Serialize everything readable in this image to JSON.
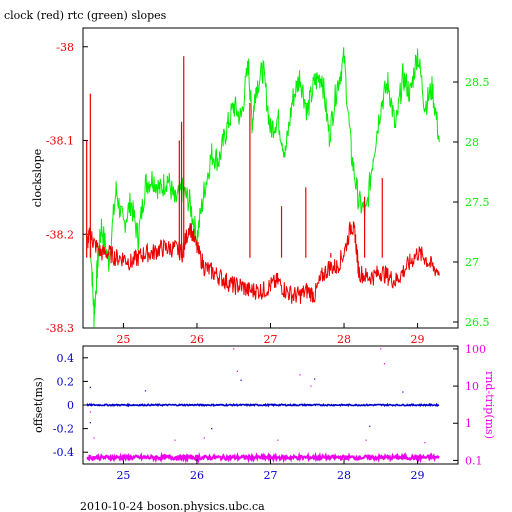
{
  "title": "clock (red) rtc (green) slopes",
  "footer": "2010-10-24  boson.physics.ubc.ca",
  "colors": {
    "red": "#ee0000",
    "green": "#00ee00",
    "blue": "#0000cc",
    "magenta": "#ee00ee",
    "axis": "#000000"
  },
  "chart_data": [
    {
      "type": "line",
      "title": "clock (red) rtc (green) slopes",
      "xlabel": "",
      "ylabel": "clockslope",
      "xlim": [
        24.45,
        29.55
      ],
      "ylim_left": [
        -38.3,
        -37.98
      ],
      "ylim_right": [
        26.45,
        28.95
      ],
      "x_ticks": [
        "25",
        "26",
        "27",
        "28",
        "29"
      ],
      "y_ticks_left": [
        "-38",
        "-38.1",
        "-38.2",
        "-38.3"
      ],
      "y_ticks_right": [
        "26.5",
        "27",
        "27.5",
        "28",
        "28.5"
      ],
      "series": [
        {
          "name": "clock",
          "color": "red",
          "axis": "left",
          "x": [
            24.5,
            24.55,
            24.6,
            24.7,
            24.8,
            24.9,
            25.0,
            25.1,
            25.2,
            25.3,
            25.4,
            25.5,
            25.6,
            25.7,
            25.8,
            25.9,
            26.0,
            26.1,
            26.2,
            26.3,
            26.4,
            26.5,
            26.6,
            26.7,
            26.8,
            26.9,
            27.0,
            27.1,
            27.2,
            27.3,
            27.4,
            27.5,
            27.6,
            27.7,
            27.8,
            27.9,
            28.0,
            28.1,
            28.15,
            28.2,
            28.3,
            28.4,
            28.5,
            28.6,
            28.7,
            28.8,
            28.9,
            29.0,
            29.1,
            29.2,
            29.3
          ],
          "values": [
            -38.21,
            -38.2,
            -38.21,
            -38.22,
            -38.22,
            -38.225,
            -38.225,
            -38.23,
            -38.225,
            -38.22,
            -38.22,
            -38.215,
            -38.215,
            -38.215,
            -38.22,
            -38.19,
            -38.215,
            -38.235,
            -38.24,
            -38.245,
            -38.25,
            -38.255,
            -38.255,
            -38.26,
            -38.26,
            -38.26,
            -38.255,
            -38.25,
            -38.26,
            -38.265,
            -38.265,
            -38.26,
            -38.265,
            -38.245,
            -38.235,
            -38.235,
            -38.22,
            -38.19,
            -38.2,
            -38.24,
            -38.245,
            -38.245,
            -38.24,
            -38.245,
            -38.25,
            -38.24,
            -38.23,
            -38.22,
            -38.225,
            -38.235,
            -38.24
          ],
          "spikes": [
            {
              "x": 24.55,
              "y": -38.05
            },
            {
              "x": 24.5,
              "y": -38.1
            },
            {
              "x": 25.82,
              "y": -38.01
            },
            {
              "x": 25.79,
              "y": -38.08
            },
            {
              "x": 25.76,
              "y": -38.1
            },
            {
              "x": 26.72,
              "y": -38.06
            },
            {
              "x": 27.15,
              "y": -38.17
            },
            {
              "x": 27.48,
              "y": -38.15
            },
            {
              "x": 27.82,
              "y": -38.22
            },
            {
              "x": 28.28,
              "y": -38.16
            },
            {
              "x": 28.52,
              "y": -38.14
            }
          ]
        },
        {
          "name": "rtc",
          "color": "green",
          "axis": "right",
          "x": [
            24.55,
            24.6,
            24.65,
            24.7,
            24.8,
            24.9,
            25.0,
            25.1,
            25.2,
            25.3,
            25.4,
            25.5,
            25.6,
            25.7,
            25.8,
            25.9,
            26.0,
            26.1,
            26.2,
            26.3,
            26.4,
            26.5,
            26.6,
            26.7,
            26.75,
            26.8,
            26.9,
            27.0,
            27.1,
            27.2,
            27.3,
            27.4,
            27.5,
            27.6,
            27.7,
            27.8,
            27.9,
            28.0,
            28.1,
            28.2,
            28.3,
            28.4,
            28.5,
            28.6,
            28.7,
            28.8,
            28.9,
            29.0,
            29.1,
            29.2,
            29.3
          ],
          "values": [
            27.2,
            26.55,
            27.0,
            27.3,
            27.0,
            27.6,
            27.3,
            27.5,
            27.2,
            27.65,
            27.7,
            27.6,
            27.7,
            27.5,
            27.6,
            27.5,
            27.2,
            27.6,
            27.9,
            27.85,
            28.1,
            28.3,
            28.2,
            28.65,
            28.15,
            28.45,
            28.6,
            28.1,
            28.2,
            27.9,
            28.35,
            28.55,
            28.25,
            28.5,
            28.55,
            28.05,
            28.45,
            28.7,
            27.9,
            27.5,
            27.4,
            27.9,
            28.3,
            28.5,
            28.1,
            28.55,
            28.4,
            28.75,
            28.3,
            28.45,
            28.0
          ]
        }
      ]
    },
    {
      "type": "scatter",
      "xlabel": "",
      "ylabel": "offset(ms)",
      "ylabel_right": "rnd-trip(ms)",
      "xlim": [
        24.45,
        29.55
      ],
      "ylim_left": [
        -0.5,
        0.5
      ],
      "ylim_right_log": [
        0.08,
        120
      ],
      "x_ticks": [
        "25",
        "26",
        "27",
        "28",
        "29"
      ],
      "y_ticks_left": [
        "0.4",
        "0.2",
        "0",
        "-0.2",
        "-0.4"
      ],
      "y_ticks_right": [
        "100",
        "10",
        "1",
        "0.1"
      ],
      "series": [
        {
          "name": "offset",
          "color": "blue",
          "axis": "left",
          "x_range": [
            24.5,
            29.3
          ],
          "level": 0.0,
          "outliers": [
            {
              "x": 24.55,
              "y": 0.15
            },
            {
              "x": 24.55,
              "y": -0.15
            },
            {
              "x": 25.3,
              "y": 0.12
            },
            {
              "x": 26.2,
              "y": -0.2
            },
            {
              "x": 26.6,
              "y": 0.21
            },
            {
              "x": 27.6,
              "y": 0.22
            },
            {
              "x": 28.35,
              "y": -0.18
            },
            {
              "x": 28.8,
              "y": 0.11
            }
          ]
        },
        {
          "name": "rnd-trip",
          "color": "magenta",
          "axis": "right",
          "x_range": [
            24.5,
            29.3
          ],
          "level": 0.12,
          "outliers": [
            {
              "x": 24.55,
              "y": 2.0
            },
            {
              "x": 24.6,
              "y": 0.4
            },
            {
              "x": 25.7,
              "y": 0.35
            },
            {
              "x": 26.1,
              "y": 0.4
            },
            {
              "x": 26.5,
              "y": 100
            },
            {
              "x": 26.55,
              "y": 25
            },
            {
              "x": 27.1,
              "y": 0.35
            },
            {
              "x": 27.4,
              "y": 20
            },
            {
              "x": 27.55,
              "y": 10
            },
            {
              "x": 28.5,
              "y": 100
            },
            {
              "x": 28.55,
              "y": 40
            },
            {
              "x": 28.3,
              "y": 0.35
            },
            {
              "x": 29.1,
              "y": 0.3
            }
          ]
        }
      ]
    }
  ]
}
